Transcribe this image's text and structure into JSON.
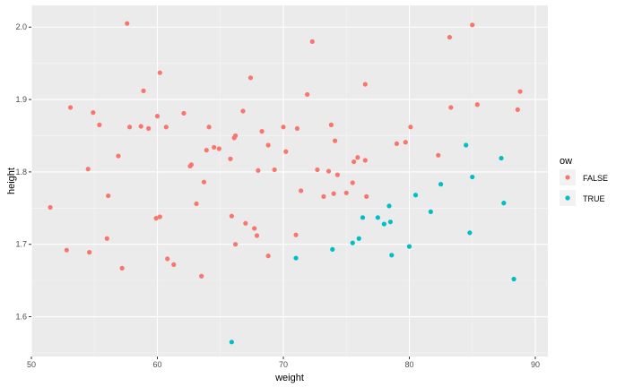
{
  "chart_data": {
    "type": "scatter",
    "xlabel": "weight",
    "ylabel": "height",
    "xlim": [
      50,
      91
    ],
    "ylim": [
      1.545,
      2.03
    ],
    "x_ticks": [
      50,
      60,
      70,
      80,
      90
    ],
    "x_tick_labels": [
      "50",
      "60",
      "70",
      "80",
      "90"
    ],
    "y_ticks": [
      1.6,
      1.7,
      1.8,
      1.9,
      2.0
    ],
    "y_tick_labels": [
      "1.6",
      "1.7",
      "1.8",
      "1.9",
      "2.0"
    ],
    "grid": true,
    "legend": {
      "title": "ow",
      "placement": "right",
      "entries": [
        {
          "label": "FALSE",
          "color": "#F8766D"
        },
        {
          "label": "TRUE",
          "color": "#00BFC4"
        }
      ]
    },
    "series": [
      {
        "name": "FALSE",
        "color": "#F8766D",
        "points": [
          [
            51.5,
            1.751
          ],
          [
            52.8,
            1.692
          ],
          [
            53.1,
            1.889
          ],
          [
            54.5,
            1.804
          ],
          [
            54.6,
            1.689
          ],
          [
            54.9,
            1.882
          ],
          [
            55.4,
            1.865
          ],
          [
            56.0,
            1.708
          ],
          [
            56.1,
            1.767
          ],
          [
            56.9,
            1.822
          ],
          [
            57.2,
            1.667
          ],
          [
            57.6,
            2.005
          ],
          [
            57.8,
            1.862
          ],
          [
            58.7,
            1.863
          ],
          [
            58.9,
            1.912
          ],
          [
            59.3,
            1.86
          ],
          [
            59.9,
            1.736
          ],
          [
            60.0,
            1.877
          ],
          [
            60.2,
            1.738
          ],
          [
            60.2,
            1.937
          ],
          [
            60.7,
            1.862
          ],
          [
            60.8,
            1.68
          ],
          [
            61.3,
            1.672
          ],
          [
            62.1,
            1.881
          ],
          [
            62.6,
            1.808
          ],
          [
            62.7,
            1.81
          ],
          [
            63.1,
            1.756
          ],
          [
            63.5,
            1.656
          ],
          [
            63.7,
            1.786
          ],
          [
            63.9,
            1.83
          ],
          [
            64.1,
            1.862
          ],
          [
            64.5,
            1.834
          ],
          [
            64.9,
            1.832
          ],
          [
            65.8,
            1.818
          ],
          [
            65.9,
            1.739
          ],
          [
            66.1,
            1.847
          ],
          [
            66.2,
            1.85
          ],
          [
            66.2,
            1.7
          ],
          [
            66.8,
            1.884
          ],
          [
            67.0,
            1.729
          ],
          [
            67.4,
            1.93
          ],
          [
            67.7,
            1.722
          ],
          [
            67.9,
            1.712
          ],
          [
            68.0,
            1.802
          ],
          [
            68.3,
            1.856
          ],
          [
            68.8,
            1.837
          ],
          [
            68.8,
            1.684
          ],
          [
            69.3,
            1.803
          ],
          [
            70.0,
            1.862
          ],
          [
            70.2,
            1.828
          ],
          [
            71.0,
            1.713
          ],
          [
            71.1,
            1.86
          ],
          [
            71.4,
            1.774
          ],
          [
            71.9,
            1.907
          ],
          [
            72.3,
            1.98
          ],
          [
            72.7,
            1.803
          ],
          [
            73.2,
            1.766
          ],
          [
            73.6,
            1.801
          ],
          [
            73.8,
            1.865
          ],
          [
            74.0,
            1.77
          ],
          [
            74.1,
            1.843
          ],
          [
            74.3,
            1.796
          ],
          [
            75.0,
            1.771
          ],
          [
            75.5,
            1.785
          ],
          [
            75.6,
            1.814
          ],
          [
            75.9,
            1.82
          ],
          [
            76.5,
            1.921
          ],
          [
            76.5,
            1.816
          ],
          [
            76.6,
            1.766
          ],
          [
            79.0,
            1.839
          ],
          [
            79.7,
            1.841
          ],
          [
            80.1,
            1.862
          ],
          [
            82.3,
            1.823
          ],
          [
            83.2,
            1.986
          ],
          [
            83.3,
            1.889
          ],
          [
            85.0,
            2.003
          ],
          [
            85.4,
            1.893
          ],
          [
            88.6,
            1.886
          ],
          [
            88.8,
            1.911
          ]
        ]
      },
      {
        "name": "TRUE",
        "color": "#00BFC4",
        "points": [
          [
            65.9,
            1.565
          ],
          [
            71.0,
            1.681
          ],
          [
            73.9,
            1.693
          ],
          [
            75.5,
            1.702
          ],
          [
            76.0,
            1.708
          ],
          [
            76.3,
            1.737
          ],
          [
            77.5,
            1.737
          ],
          [
            78.0,
            1.728
          ],
          [
            78.4,
            1.753
          ],
          [
            78.5,
            1.731
          ],
          [
            78.6,
            1.685
          ],
          [
            80.0,
            1.697
          ],
          [
            80.5,
            1.768
          ],
          [
            81.7,
            1.745
          ],
          [
            82.5,
            1.783
          ],
          [
            84.5,
            1.837
          ],
          [
            84.8,
            1.716
          ],
          [
            85.0,
            1.793
          ],
          [
            87.3,
            1.819
          ],
          [
            87.5,
            1.757
          ],
          [
            88.3,
            1.652
          ]
        ]
      }
    ]
  }
}
